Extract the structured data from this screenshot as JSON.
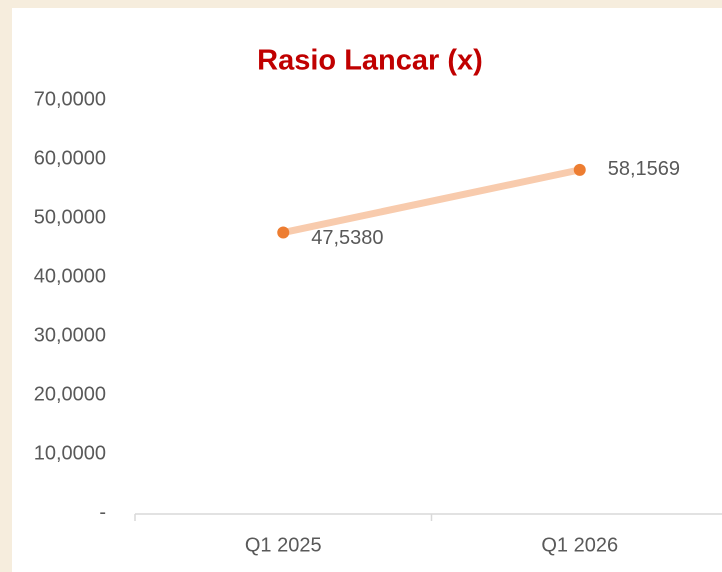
{
  "chart_data": {
    "type": "line",
    "title": "Rasio Lancar (x)",
    "categories": [
      "Q1 2025",
      "Q1 2026"
    ],
    "series": [
      {
        "name": "Rasio Lancar",
        "color": "#ed7d31",
        "line_color": "#f8cbad",
        "values": [
          47.538,
          58.1569
        ],
        "value_labels": [
          "47,5380",
          "58,1569"
        ]
      }
    ],
    "ylim": [
      0,
      70
    ],
    "yticks": [
      {
        "value": 0,
        "label": "-"
      },
      {
        "value": 10,
        "label": "10,0000"
      },
      {
        "value": 20,
        "label": "20,0000"
      },
      {
        "value": 30,
        "label": "30,0000"
      },
      {
        "value": 40,
        "label": "40,0000"
      },
      {
        "value": 50,
        "label": "50,0000"
      },
      {
        "value": 60,
        "label": "60,0000"
      },
      {
        "value": 70,
        "label": "70,0000"
      }
    ],
    "grid": false
  }
}
